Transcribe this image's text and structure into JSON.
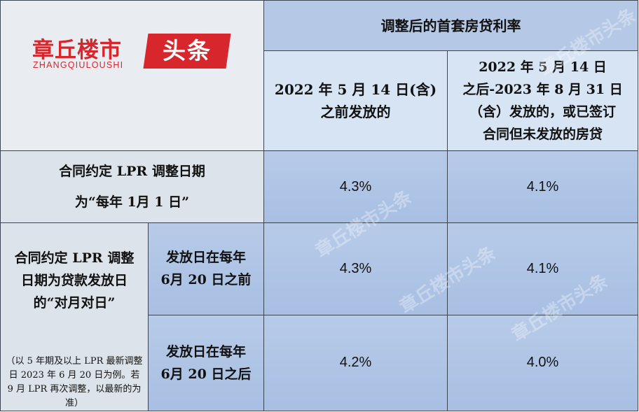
{
  "logo": {
    "cn": "章丘楼市",
    "en": "ZHANGQIULOUSHI",
    "badge": "头条"
  },
  "header": {
    "title": "调整后的首套房贷利率",
    "col1": "2022 年 5 月 14 日(含)之前发放的",
    "col2": [
      "2022 年 5 月 14 日",
      "之后-2023 年 8 月 31 日",
      "（含）发放的，或已签订",
      "合同但未发放的房贷"
    ]
  },
  "rows": [
    {
      "label": [
        "合同约定 LPR 调整日期",
        "为“每年 1月 1 日”"
      ],
      "rate1": "4.3%",
      "rate2": "4.1%"
    },
    {
      "group_label": [
        "合同约定 LPR 调整",
        "日期为贷款发放日",
        "的“对月对日”"
      ],
      "group_note": "（以 5 年期及以上 LPR 最新调整日 2023 年 6 月 20 日为例。若 9 月 LPR 再次调整，以最新的为准）",
      "sub_label": [
        "发放日在每年",
        "6月 20 日之前"
      ],
      "rate1": "4.3%",
      "rate2": "4.1%"
    },
    {
      "sub_label": [
        "发放日在每年",
        "6月 20 日之后"
      ],
      "rate1": "4.2%",
      "rate2": "4.0%"
    }
  ],
  "watermark": "章丘楼市头条",
  "colors": {
    "brand_red": "#d7262c",
    "cell_blue": "#b7cbe8",
    "border": "#3b4652"
  }
}
